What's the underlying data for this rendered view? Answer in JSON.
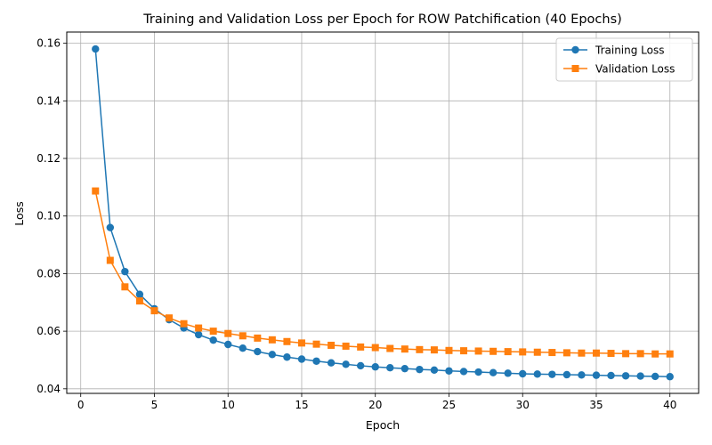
{
  "chart_data": {
    "type": "line",
    "title": "Training and Validation Loss per Epoch for ROW Patchification (40 Epochs)",
    "xlabel": "Epoch",
    "ylabel": "Loss",
    "xlim": [
      -0.95,
      41.95
    ],
    "ylim": [
      0.0384,
      0.1639
    ],
    "xticks": [
      0,
      5,
      10,
      15,
      20,
      25,
      30,
      35,
      40
    ],
    "yticks": [
      0.04,
      0.06,
      0.08,
      0.1,
      0.12,
      0.14,
      0.16
    ],
    "ytick_labels": [
      "0.04",
      "0.06",
      "0.08",
      "0.10",
      "0.12",
      "0.14",
      "0.16"
    ],
    "grid": true,
    "legend_position": "top-right",
    "x": [
      1,
      2,
      3,
      4,
      5,
      6,
      7,
      8,
      9,
      10,
      11,
      12,
      13,
      14,
      15,
      16,
      17,
      18,
      19,
      20,
      21,
      22,
      23,
      24,
      25,
      26,
      27,
      28,
      29,
      30,
      31,
      32,
      33,
      34,
      35,
      36,
      37,
      38,
      39,
      40
    ],
    "series": [
      {
        "name": "Training Loss",
        "color": "#1f77b4",
        "marker": "circle",
        "values": [
          0.158,
          0.096,
          0.0807,
          0.0728,
          0.0678,
          0.064,
          0.0611,
          0.0588,
          0.0569,
          0.0554,
          0.0541,
          0.0529,
          0.0519,
          0.051,
          0.0503,
          0.0496,
          0.049,
          0.0485,
          0.048,
          0.0476,
          0.0473,
          0.047,
          0.0467,
          0.0465,
          0.0462,
          0.046,
          0.0458,
          0.0456,
          0.0454,
          0.0452,
          0.0451,
          0.045,
          0.0449,
          0.0448,
          0.0447,
          0.0446,
          0.0445,
          0.0444,
          0.0443,
          0.0442
        ]
      },
      {
        "name": "Validation Loss",
        "color": "#ff7f0e",
        "marker": "square",
        "values": [
          0.1087,
          0.0846,
          0.0754,
          0.0705,
          0.0671,
          0.0646,
          0.0626,
          0.0611,
          0.06,
          0.0592,
          0.0584,
          0.0576,
          0.057,
          0.0564,
          0.0559,
          0.0555,
          0.0551,
          0.0548,
          0.0545,
          0.0543,
          0.054,
          0.0538,
          0.0536,
          0.0535,
          0.0533,
          0.0532,
          0.0531,
          0.053,
          0.0529,
          0.0528,
          0.0527,
          0.0526,
          0.0525,
          0.0524,
          0.0524,
          0.0523,
          0.0522,
          0.0522,
          0.0521,
          0.0521
        ]
      }
    ]
  }
}
